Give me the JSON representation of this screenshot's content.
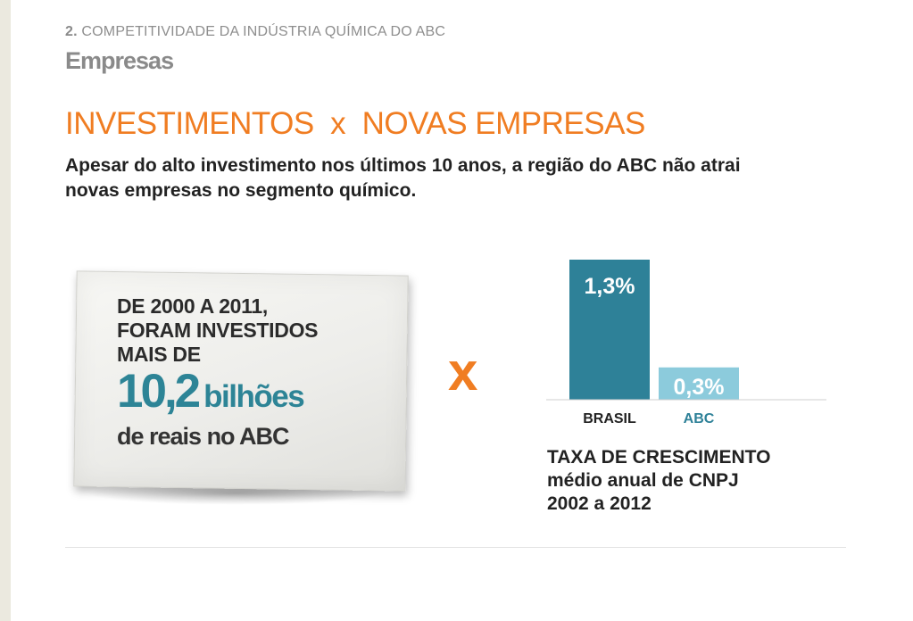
{
  "header": {
    "section_number": "2.",
    "section_title": "COMPETITIVIDADE DA INDÚSTRIA QUÍMICA DO ABC",
    "page_title": "Empresas"
  },
  "headline": "INVESTIMENTOS  x  NOVAS EMPRESAS",
  "subheadline": "Apesar do alto investimento nos últimos 10 anos, a região do ABC não atrai novas empresas no segmento químico.",
  "note": {
    "line1": "DE 2000 A 2011,",
    "line2": "FORAM INVESTIDOS",
    "line3": "MAIS DE",
    "big_number": "10,2",
    "big_unit": "bilhões",
    "line4": "de reais no ABC"
  },
  "versus": "x",
  "chart_data": {
    "type": "bar",
    "categories": [
      "BRASIL",
      "ABC"
    ],
    "values": [
      1.3,
      0.3
    ],
    "value_labels": [
      "1,3%",
      "0,3%"
    ],
    "colors": [
      "#2e8198",
      "#8ccbdc"
    ],
    "category_label_colors": [
      "#222222",
      "#2e8198"
    ],
    "title": "TAXA DE CRESCIMENTO",
    "subtitle": "médio anual de CNPJ",
    "period": "2002 a 2012",
    "ylim": [
      0,
      1.3
    ],
    "grid": false
  },
  "colors": {
    "accent_orange": "#f07d22",
    "accent_teal": "#2d8496",
    "muted_gray": "#8a8a8a"
  }
}
